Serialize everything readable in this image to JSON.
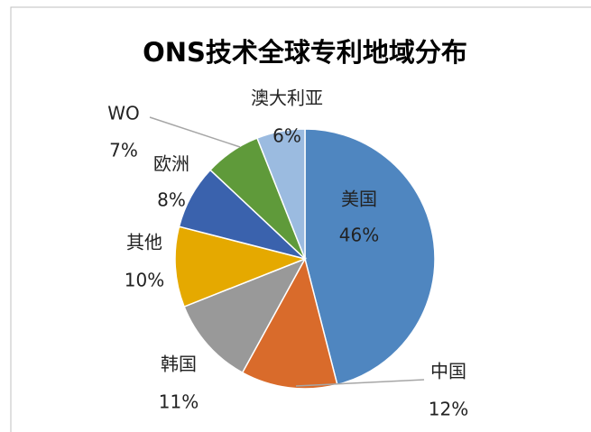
{
  "chart_data": {
    "type": "pie",
    "title": "ONS技术全球专利地域分布",
    "categories": [
      "美国",
      "中国",
      "韩国",
      "其他",
      "欧洲",
      "WO",
      "澳大利亚"
    ],
    "values": [
      46,
      12,
      11,
      10,
      8,
      7,
      6
    ],
    "value_labels": [
      "46%",
      "12%",
      "11%",
      "10%",
      "8%",
      "7%",
      "6%"
    ],
    "colors": [
      "#4f86c0",
      "#d96b2b",
      "#999999",
      "#e5a900",
      "#3a62ad",
      "#5f9a3a",
      "#9bbbe0"
    ]
  }
}
